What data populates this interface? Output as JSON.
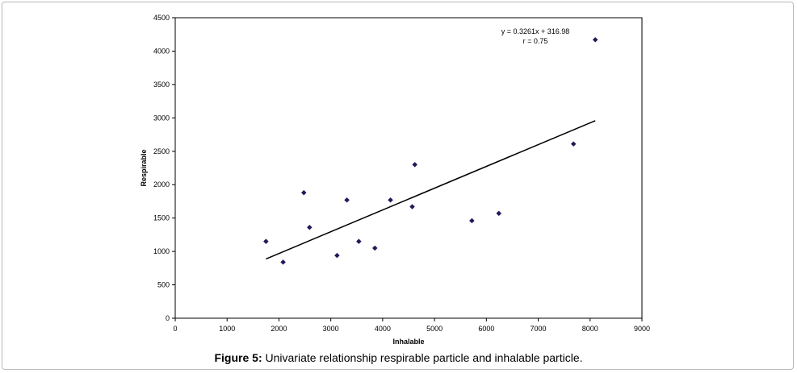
{
  "chart_data": {
    "type": "scatter",
    "xlabel": "Inhalable",
    "ylabel": "Respirable",
    "xlim": [
      0,
      9000
    ],
    "ylim": [
      0,
      4500
    ],
    "xticks": [
      "0",
      "1000",
      "2000",
      "3000",
      "4000",
      "5000",
      "6000",
      "7000",
      "8000",
      "9000"
    ],
    "yticks": [
      "0",
      "500",
      "1000",
      "1500",
      "2000",
      "2500",
      "3000",
      "3500",
      "4000",
      "4500"
    ],
    "points": [
      {
        "x": 1750,
        "y": 1150
      },
      {
        "x": 2080,
        "y": 840
      },
      {
        "x": 2480,
        "y": 1880
      },
      {
        "x": 2590,
        "y": 1360
      },
      {
        "x": 3120,
        "y": 940
      },
      {
        "x": 3310,
        "y": 1770
      },
      {
        "x": 3540,
        "y": 1150
      },
      {
        "x": 3850,
        "y": 1050
      },
      {
        "x": 4150,
        "y": 1770
      },
      {
        "x": 4570,
        "y": 1670
      },
      {
        "x": 4620,
        "y": 2300
      },
      {
        "x": 5720,
        "y": 1460
      },
      {
        "x": 6240,
        "y": 1570
      },
      {
        "x": 7680,
        "y": 2610
      },
      {
        "x": 8100,
        "y": 4170
      }
    ],
    "trendline": {
      "slope": 0.3261,
      "intercept": 316.98,
      "x_range": [
        1750,
        8100
      ]
    },
    "annotation": {
      "equation": "y = 0.3261x + 316.98",
      "r": "r = 0.75"
    },
    "grid": false,
    "legend": "none",
    "marker_color": "#1f1a5c"
  },
  "caption": {
    "label": "Figure 5:",
    "text": " Univariate relationship respirable particle and inhalable particle."
  }
}
